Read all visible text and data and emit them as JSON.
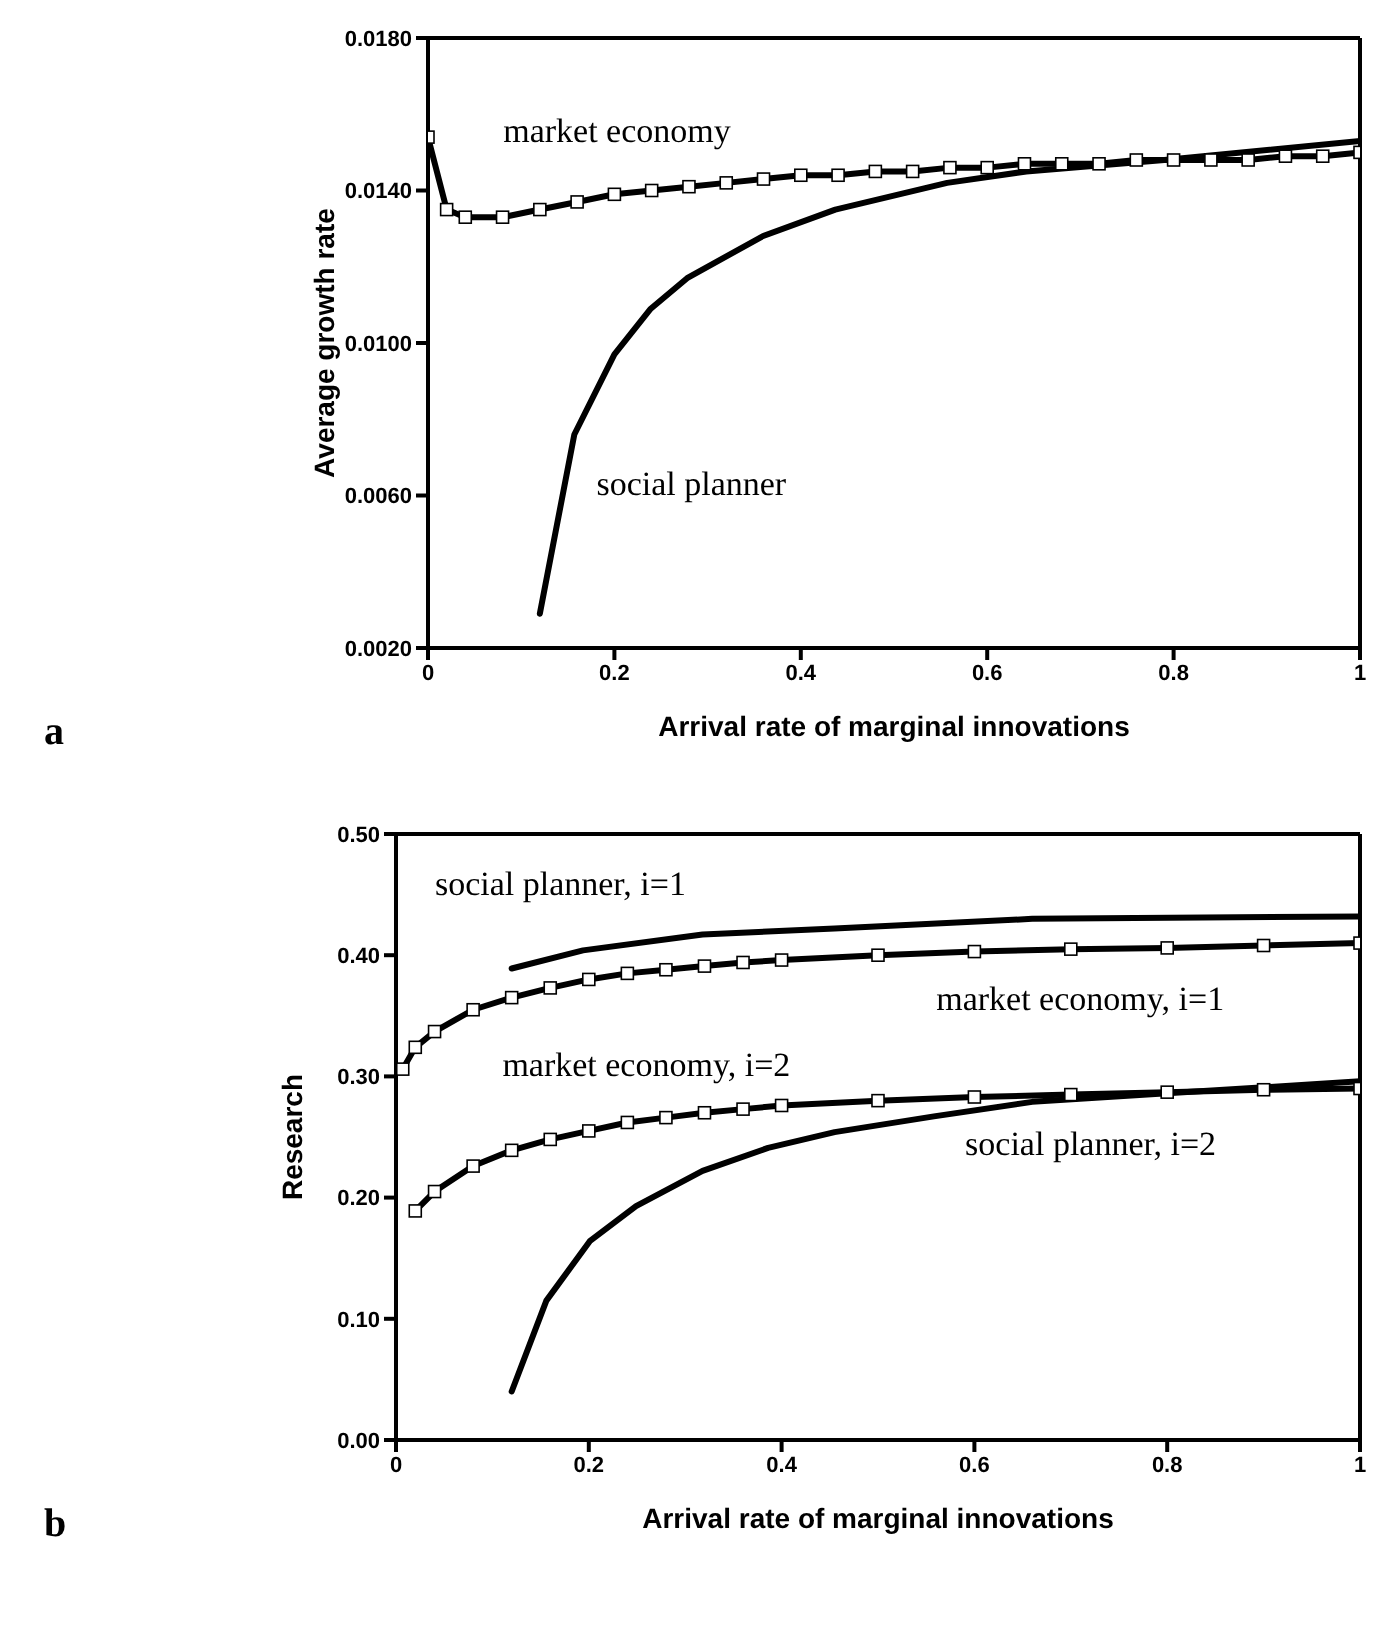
{
  "chart_data": [
    {
      "type": "line",
      "xlabel": "Arrival rate of marginal innovations",
      "ylabel": "Average growth rate",
      "annotations": [
        "a"
      ],
      "xlim": [
        0,
        1
      ],
      "xticks": [
        0,
        0.2,
        0.4,
        0.6,
        0.8,
        1
      ],
      "ylim": [
        0.002,
        0.018
      ],
      "yticks": [
        {
          "value": 0.002,
          "label": "0.0020"
        },
        {
          "value": 0.006,
          "label": "0.0060"
        },
        {
          "value": 0.01,
          "label": "0.0100"
        },
        {
          "value": 0.014,
          "label": "0.0140"
        },
        {
          "value": 0.018,
          "label": "0.0180"
        }
      ],
      "grid": false,
      "legend": false,
      "line_style": "solid",
      "series": [
        {
          "name": "market economy",
          "color": "#000000",
          "marker": "square",
          "x": [
            0,
            0.02,
            0.04,
            0.08,
            0.12,
            0.16,
            0.2,
            0.24,
            0.28,
            0.32,
            0.36,
            0.4,
            0.44,
            0.48,
            0.52,
            0.56,
            0.6,
            0.64,
            0.68,
            0.72,
            0.76,
            0.8,
            0.84,
            0.88,
            0.92,
            0.96,
            1
          ],
          "values": [
            0.0154,
            0.0135,
            0.0133,
            0.0133,
            0.0135,
            0.0137,
            0.0139,
            0.014,
            0.0141,
            0.0142,
            0.0143,
            0.0144,
            0.0144,
            0.0145,
            0.0145,
            0.0146,
            0.0146,
            0.0147,
            0.0147,
            0.0147,
            0.0148,
            0.0148,
            0.0148,
            0.0148,
            0.0149,
            0.0149,
            0.015
          ]
        },
        {
          "name": "social planner",
          "color": "#000000",
          "marker": "none",
          "x": [
            0.12,
            0.157,
            0.2,
            0.239,
            0.278,
            0.359,
            0.437,
            0.557,
            0.642,
            0.79,
            1
          ],
          "values": [
            0.0029,
            0.0076,
            0.0097,
            0.0109,
            0.0117,
            0.0128,
            0.0135,
            0.0142,
            0.0145,
            0.0148,
            0.0153
          ]
        }
      ]
    },
    {
      "type": "line",
      "xlabel": "Arrival rate of marginal innovations",
      "ylabel": "Research",
      "annotations": [
        "b"
      ],
      "xlim": [
        0,
        1
      ],
      "xticks": [
        0,
        0.2,
        0.4,
        0.6,
        0.8,
        1
      ],
      "ylim": [
        0,
        0.5
      ],
      "yticks": [
        {
          "value": 0,
          "label": "0.00"
        },
        {
          "value": 0.1,
          "label": "0.10"
        },
        {
          "value": 0.2,
          "label": "0.20"
        },
        {
          "value": 0.3,
          "label": "0.30"
        },
        {
          "value": 0.4,
          "label": "0.40"
        },
        {
          "value": 0.5,
          "label": "0.50"
        }
      ],
      "grid": false,
      "legend": false,
      "line_style": "solid",
      "series": [
        {
          "name": "social planner, i=1",
          "color": "#000000",
          "marker": "none",
          "x": [
            0.12,
            0.194,
            0.318,
            0.455,
            0.66,
            1
          ],
          "values": [
            0.389,
            0.404,
            0.417,
            0.422,
            0.43,
            0.432
          ]
        },
        {
          "name": "market economy, i=1",
          "color": "#000000",
          "marker": "square",
          "x": [
            0.007,
            0.02,
            0.04,
            0.08,
            0.12,
            0.16,
            0.2,
            0.24,
            0.28,
            0.32,
            0.36,
            0.4,
            0.5,
            0.6,
            0.7,
            0.8,
            0.9,
            1
          ],
          "values": [
            0.306,
            0.324,
            0.337,
            0.355,
            0.365,
            0.373,
            0.38,
            0.385,
            0.388,
            0.391,
            0.394,
            0.396,
            0.4,
            0.403,
            0.405,
            0.406,
            0.408,
            0.41
          ]
        },
        {
          "name": "market economy, i=2",
          "color": "#000000",
          "marker": "square",
          "x": [
            0.02,
            0.04,
            0.08,
            0.12,
            0.16,
            0.2,
            0.24,
            0.28,
            0.32,
            0.36,
            0.4,
            0.5,
            0.6,
            0.7,
            0.8,
            0.9,
            1
          ],
          "values": [
            0.189,
            0.205,
            0.226,
            0.239,
            0.248,
            0.255,
            0.262,
            0.266,
            0.27,
            0.273,
            0.276,
            0.28,
            0.283,
            0.285,
            0.287,
            0.289,
            0.29
          ]
        },
        {
          "name": "social planner, i=2",
          "color": "#000000",
          "marker": "none",
          "x": [
            0.12,
            0.156,
            0.201,
            0.249,
            0.318,
            0.386,
            0.455,
            0.558,
            0.66,
            0.8,
            1
          ],
          "values": [
            0.04,
            0.115,
            0.164,
            0.193,
            0.222,
            0.241,
            0.254,
            0.267,
            0.279,
            0.286,
            0.296
          ]
        }
      ]
    }
  ]
}
